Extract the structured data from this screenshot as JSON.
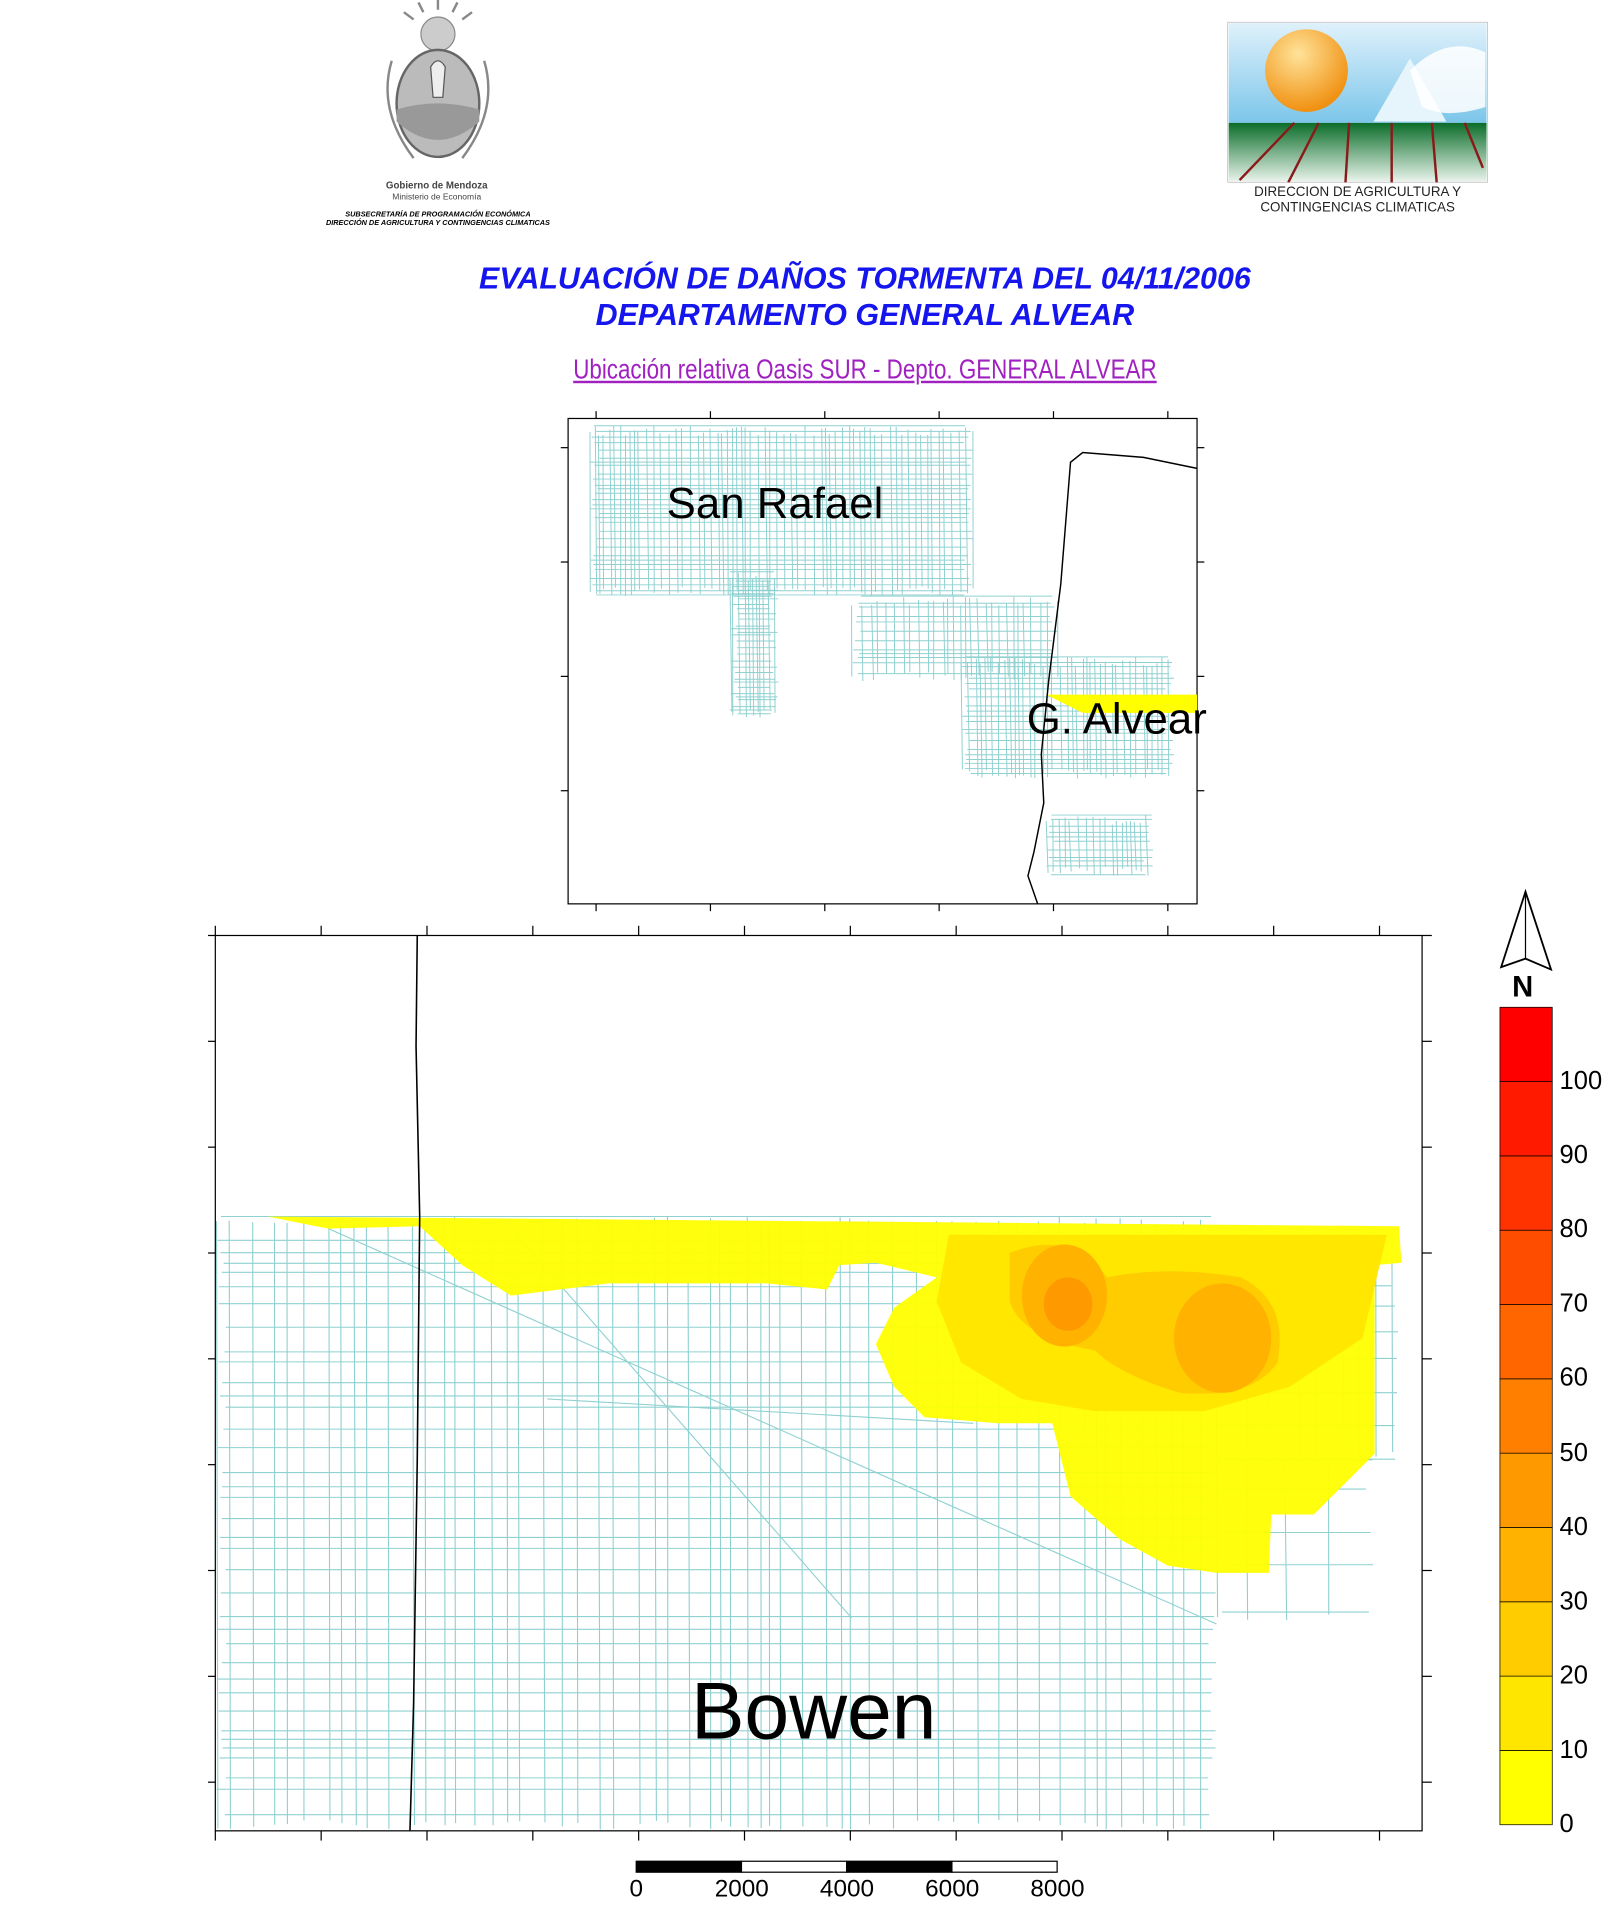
{
  "header": {
    "left_logo": {
      "icon": "mendoza-coat-of-arms",
      "line1": "Gobierno de Mendoza",
      "line2": "Ministerio de Economía",
      "line3": "SUBSECRETARÍA DE PROGRAMACIÓN ECONÓMICA",
      "line4": "DIRECCIÓN DE AGRICULTURA Y  CONTINGENCIAS CLIMATICAS"
    },
    "right_logo": {
      "icon": "sun-mountain-field-logo",
      "line1": "DIRECCION DE AGRICULTURA Y",
      "line2": "CONTINGENCIAS CLIMATICAS"
    },
    "title_line1": "EVALUACIÓN DE DAÑOS TORMENTA DEL 04/11/2006",
    "title_line2": "DEPARTAMENTO GENERAL ALVEAR",
    "subtitle": "Ubicación relativa Oasis SUR - Depto. GENERAL ALVEAR"
  },
  "inset_map": {
    "labels": [
      "San Rafael",
      "G. Alvear"
    ],
    "street_color": "#8fd0d0"
  },
  "main_map": {
    "place_label": "Bowen",
    "street_color": "#8fd0d0"
  },
  "legend": {
    "north_label": "N",
    "ticks": [
      "0",
      "10",
      "20",
      "30",
      "40",
      "50",
      "60",
      "70",
      "80",
      "90",
      "100"
    ],
    "colors": [
      "#ffff00",
      "#ffe600",
      "#ffcc00",
      "#ffb300",
      "#ff9900",
      "#ff8000",
      "#ff6600",
      "#ff4d00",
      "#ff3300",
      "#ff1a00",
      "#ff0000"
    ]
  },
  "scale_bar": {
    "ticks": [
      "0",
      "2000",
      "4000",
      "6000",
      "8000"
    ]
  }
}
